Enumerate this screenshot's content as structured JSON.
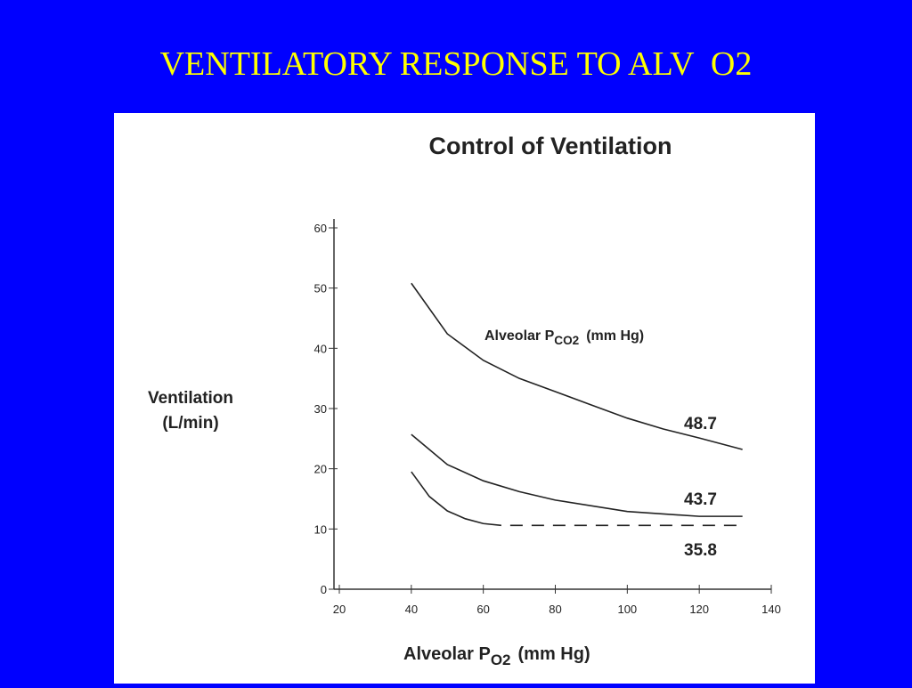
{
  "slide_title": "VENTILATORY RESPONSE TO ALV  O2",
  "chart_data": {
    "type": "line",
    "title": "Control of Ventilation",
    "y_label": [
      "Ventilation",
      "(L/min)"
    ],
    "x_label": {
      "main": "Alveolar P",
      "sub": "O2",
      "unit": "(mm Hg)"
    },
    "legend_title": {
      "main": "Alveolar P",
      "sub": "CO2",
      "unit": "(mm Hg)"
    },
    "xlim": [
      20,
      140
    ],
    "xticks": [
      20,
      40,
      60,
      80,
      100,
      120,
      140
    ],
    "ylim": [
      0,
      60
    ],
    "yticks": [
      0,
      10,
      20,
      30,
      40,
      50,
      60
    ],
    "color": "#222222",
    "series": [
      {
        "name": "48.7",
        "x": [
          40,
          50,
          60,
          70,
          80,
          90,
          100,
          110,
          120,
          132
        ],
        "values": [
          50.8,
          42.4,
          38,
          35,
          32.8,
          30.6,
          28.4,
          26.6,
          25.1,
          23.2
        ]
      },
      {
        "name": "43.7",
        "x": [
          40,
          50,
          60,
          70,
          80,
          100,
          120,
          132
        ],
        "values": [
          25.7,
          20.7,
          18,
          16.2,
          14.8,
          12.9,
          12.1,
          12.1
        ]
      },
      {
        "name": "35.8",
        "x": [
          40,
          45,
          50,
          55,
          60,
          65,
          132
        ],
        "values": [
          19.5,
          15.4,
          13,
          11.7,
          10.9,
          10.6,
          10.6
        ],
        "dashed_from": 65
      }
    ]
  }
}
